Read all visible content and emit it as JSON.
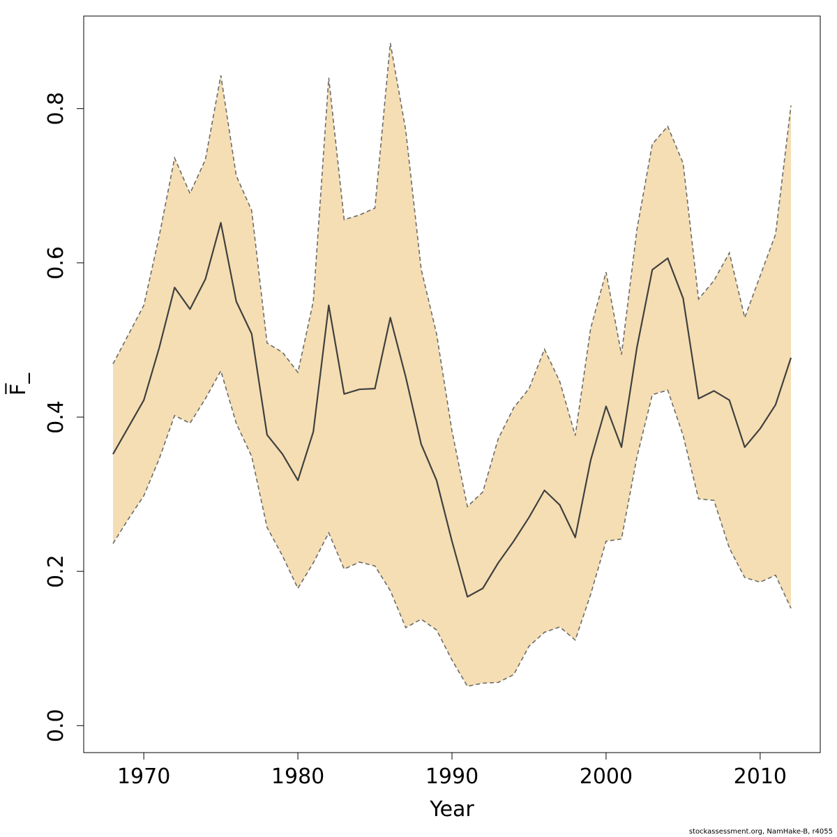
{
  "chart_data": {
    "type": "area",
    "xlabel": "Year",
    "ylabel": "F̅_",
    "xlim": [
      1966.1,
      2013.9
    ],
    "ylim": [
      -0.035,
      0.92
    ],
    "x_ticks": [
      1970,
      1980,
      1990,
      2000,
      2010
    ],
    "x_tick_labels": [
      "1970",
      "1980",
      "1990",
      "2000",
      "2010"
    ],
    "y_ticks": [
      0.0,
      0.2,
      0.4,
      0.6,
      0.8
    ],
    "y_tick_labels": [
      "0.0",
      "0.2",
      "0.4",
      "0.6",
      "0.8"
    ],
    "grid": false,
    "colors": {
      "band_fill": "#f5deb3",
      "band_edge": "#6b6b6b",
      "estimate_line": "#404040",
      "axis": "#000000"
    },
    "x": [
      1968,
      1969,
      1970,
      1971,
      1972,
      1973,
      1974,
      1975,
      1976,
      1977,
      1978,
      1979,
      1980,
      1981,
      1982,
      1983,
      1984,
      1985,
      1986,
      1987,
      1988,
      1989,
      1990,
      1991,
      1992,
      1993,
      1994,
      1995,
      1996,
      1997,
      1998,
      1999,
      2000,
      2001,
      2002,
      2003,
      2004,
      2005,
      2006,
      2007,
      2008,
      2009,
      2010,
      2011,
      2012
    ],
    "series": [
      {
        "role": "estimate",
        "values": [
          0.352,
          0.387,
          0.422,
          0.49,
          0.568,
          0.54,
          0.579,
          0.652,
          0.55,
          0.508,
          0.377,
          0.352,
          0.318,
          0.381,
          0.545,
          0.43,
          0.436,
          0.437,
          0.529,
          0.452,
          0.365,
          0.318,
          0.239,
          0.167,
          0.178,
          0.211,
          0.239,
          0.27,
          0.305,
          0.286,
          0.244,
          0.344,
          0.414,
          0.361,
          0.49,
          0.591,
          0.606,
          0.554,
          0.424,
          0.434,
          0.422,
          0.361,
          0.385,
          0.416,
          0.477
        ]
      },
      {
        "role": "upper",
        "values": [
          0.469,
          0.507,
          0.545,
          0.635,
          0.736,
          0.69,
          0.734,
          0.843,
          0.713,
          0.668,
          0.496,
          0.484,
          0.458,
          0.55,
          0.84,
          0.656,
          0.662,
          0.671,
          0.885,
          0.772,
          0.592,
          0.508,
          0.382,
          0.284,
          0.303,
          0.372,
          0.412,
          0.437,
          0.488,
          0.446,
          0.376,
          0.515,
          0.588,
          0.481,
          0.643,
          0.754,
          0.777,
          0.729,
          0.553,
          0.577,
          0.613,
          0.529,
          0.583,
          0.637,
          0.804
        ]
      },
      {
        "role": "lower",
        "values": [
          0.236,
          0.268,
          0.298,
          0.346,
          0.402,
          0.392,
          0.424,
          0.46,
          0.392,
          0.349,
          0.257,
          0.22,
          0.178,
          0.211,
          0.25,
          0.203,
          0.212,
          0.207,
          0.175,
          0.127,
          0.138,
          0.124,
          0.085,
          0.051,
          0.055,
          0.056,
          0.066,
          0.103,
          0.121,
          0.128,
          0.111,
          0.17,
          0.239,
          0.242,
          0.348,
          0.429,
          0.435,
          0.376,
          0.294,
          0.292,
          0.23,
          0.192,
          0.186,
          0.195,
          0.152
        ]
      }
    ]
  },
  "footer": "stockassessment.org, NamHake-B, r4055"
}
